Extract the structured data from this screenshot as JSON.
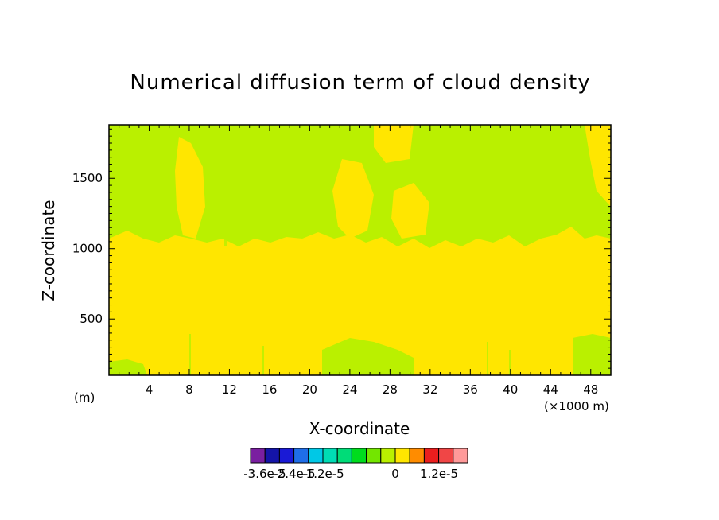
{
  "chart_data": {
    "type": "heatmap",
    "title": "Numerical diffusion term of cloud density",
    "xlabel": "X-coordinate",
    "ylabel": "Z-coordinate",
    "x_unit": "(×1000 m)",
    "y_unit": "(m)",
    "xlim": [
      0,
      50
    ],
    "ylim": [
      100,
      1880
    ],
    "x_ticks": [
      4,
      8,
      12,
      16,
      20,
      24,
      28,
      32,
      36,
      40,
      44,
      48
    ],
    "y_ticks": [
      500,
      1000,
      1500
    ],
    "colorbar": {
      "placement": "bottom",
      "colors": [
        "#7a1fa0",
        "#1414a8",
        "#1a1ad6",
        "#1f6ee8",
        "#00c8e6",
        "#00dcb4",
        "#00dc78",
        "#00dc1e",
        "#73e600",
        "#baf000",
        "#ffe600",
        "#ff8c00",
        "#eb1e1e",
        "#f04646",
        "#ff9a9a"
      ],
      "tick_labels": [
        "-3.6e-5",
        "-2.4e-5",
        "-1.2e-5",
        "0",
        "1.2e-5"
      ]
    },
    "regions": [
      {
        "level": "0 to 3e-6",
        "color": "#ffe600",
        "description": "dominant below ~1000 m"
      },
      {
        "level": "-3e-6 to 0",
        "color": "#baf000",
        "description": "dominant above ~1100 m"
      }
    ]
  }
}
